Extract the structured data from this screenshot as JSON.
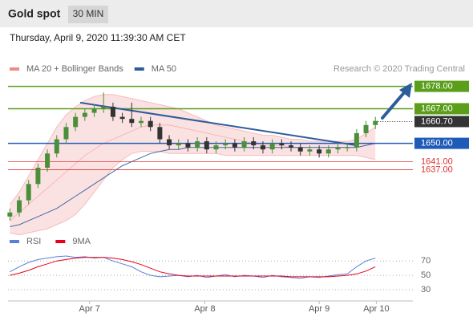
{
  "header": {
    "title": "Gold spot",
    "interval": "30 MIN",
    "timestamp": "Thursday, April 9, 2020 11:39:30 AM CET",
    "source": "Research © 2020 Trading Central"
  },
  "chart_data": [
    {
      "type": "candlestick",
      "xlim": [
        -0.2,
        43
      ],
      "ylim": [
        1610,
        1681
      ],
      "up_color": "#4a8f3a",
      "down_color": "#333333",
      "open": [
        1614,
        1616,
        1622,
        1630,
        1638,
        1645,
        1652,
        1658,
        1663,
        1665,
        1667,
        1668,
        1663,
        1662,
        1660,
        1661,
        1658,
        1652,
        1649,
        1650,
        1648,
        1651,
        1647,
        1649,
        1650,
        1648,
        1651,
        1649,
        1647,
        1650,
        1649,
        1648,
        1646,
        1647,
        1645,
        1647,
        1648,
        1648,
        1655,
        1659
      ],
      "high": [
        1618,
        1624,
        1632,
        1640,
        1647,
        1654,
        1660,
        1665,
        1667,
        1669,
        1675,
        1670,
        1665,
        1670,
        1663,
        1663,
        1660,
        1654,
        1652,
        1652,
        1653,
        1653,
        1651,
        1652,
        1652,
        1653,
        1653,
        1651,
        1652,
        1652,
        1651,
        1650,
        1649,
        1649,
        1649,
        1650,
        1650,
        1657,
        1661,
        1663
      ],
      "low": [
        1612,
        1614,
        1620,
        1628,
        1636,
        1643,
        1650,
        1656,
        1661,
        1663,
        1665,
        1661,
        1660,
        1658,
        1658,
        1656,
        1650,
        1647,
        1647,
        1646,
        1646,
        1645,
        1645,
        1647,
        1646,
        1646,
        1647,
        1645,
        1645,
        1647,
        1646,
        1644,
        1644,
        1643,
        1643,
        1645,
        1646,
        1646,
        1653,
        1657
      ],
      "close": [
        1616,
        1622,
        1630,
        1638,
        1645,
        1652,
        1658,
        1663,
        1665,
        1667,
        1668,
        1663,
        1662,
        1660,
        1661,
        1658,
        1652,
        1649,
        1650,
        1648,
        1651,
        1647,
        1649,
        1650,
        1648,
        1651,
        1649,
        1647,
        1650,
        1649,
        1648,
        1646,
        1647,
        1645,
        1647,
        1648,
        1648,
        1655,
        1659,
        1661
      ],
      "series": [
        {
          "name": "MA 20 + Bollinger Bands",
          "color": "#f08a8a",
          "values": [
            1612,
            1616,
            1620,
            1624,
            1628,
            1632,
            1636,
            1640,
            1644,
            1647,
            1650,
            1652,
            1654,
            1656,
            1658,
            1659,
            1659,
            1659,
            1658,
            1657,
            1656,
            1655,
            1654,
            1653,
            1652,
            1651,
            1650,
            1649,
            1649,
            1649,
            1648,
            1648,
            1648,
            1648,
            1648,
            1648,
            1648,
            1648,
            1649,
            1650
          ],
          "upper": [
            1620,
            1626,
            1634,
            1642,
            1650,
            1658,
            1664,
            1668,
            1671,
            1673,
            1674,
            1674,
            1673,
            1672,
            1671,
            1670,
            1669,
            1668,
            1667,
            1665,
            1663,
            1661,
            1659,
            1658,
            1657,
            1656,
            1655,
            1654,
            1654,
            1653,
            1652,
            1652,
            1651,
            1651,
            1651,
            1651,
            1651,
            1652,
            1655,
            1658
          ],
          "lower": [
            1606,
            1605,
            1606,
            1607,
            1608,
            1610,
            1612,
            1615,
            1620,
            1626,
            1632,
            1638,
            1642,
            1645,
            1646,
            1646,
            1646,
            1645,
            1645,
            1645,
            1645,
            1645,
            1645,
            1644,
            1644,
            1644,
            1644,
            1644,
            1644,
            1644,
            1644,
            1644,
            1644,
            1644,
            1644,
            1644,
            1644,
            1644,
            1643,
            1642
          ]
        },
        {
          "name": "MA 50",
          "color": "#2e5c9a",
          "values": [
            1609,
            1610,
            1612,
            1614,
            1616,
            1618,
            1621,
            1624,
            1627,
            1630,
            1633,
            1636,
            1639,
            1641,
            1643,
            1645,
            1646,
            1647,
            1647,
            1648,
            1648,
            1648,
            1648,
            1648,
            1648,
            1648,
            1648,
            1648,
            1648,
            1648,
            1648,
            1648,
            1648,
            1648,
            1648,
            1648,
            1648,
            1648,
            1649,
            1650
          ]
        }
      ],
      "trendline": {
        "x": [
          7.5,
          37
        ],
        "y": [
          1670,
          1649
        ],
        "color": "#2e5c9a"
      },
      "levels": [
        {
          "value": 1678,
          "label": "1678.00",
          "color": "#5a9e1a",
          "style": "box"
        },
        {
          "value": 1667,
          "label": "1667.00",
          "color": "#5a9e1a",
          "style": "box"
        },
        {
          "value": 1660.7,
          "label": "1660.70",
          "color": "#333333",
          "style": "current"
        },
        {
          "value": 1650,
          "label": "1650.00",
          "color": "#1e5bb8",
          "style": "box"
        },
        {
          "value": 1641,
          "label": "1641.00",
          "color": "#e03030",
          "style": "text"
        },
        {
          "value": 1637,
          "label": "1637.00",
          "color": "#e03030",
          "style": "text"
        }
      ]
    },
    {
      "type": "line",
      "xlim": [
        -0.2,
        43
      ],
      "ylim": [
        20,
        87
      ],
      "yticks": [
        30,
        50,
        70
      ],
      "grid": true,
      "series": [
        {
          "name": "RSI",
          "color": "#5b7fd6",
          "values": [
            55,
            62,
            68,
            72,
            74,
            76,
            77,
            75,
            76,
            74,
            75,
            70,
            66,
            62,
            55,
            50,
            48,
            49,
            50,
            48,
            50,
            47,
            49,
            51,
            48,
            50,
            49,
            47,
            50,
            48,
            47,
            46,
            48,
            47,
            49,
            51,
            52,
            62,
            70,
            74
          ]
        },
        {
          "name": "9MA",
          "color": "#e8001c",
          "values": [
            50,
            53,
            57,
            62,
            66,
            70,
            72,
            74,
            75,
            75,
            75,
            74,
            72,
            69,
            65,
            60,
            55,
            52,
            50,
            49,
            49,
            49,
            49,
            49,
            49,
            49,
            49,
            49,
            49,
            49,
            48,
            48,
            48,
            48,
            48,
            49,
            50,
            52,
            56,
            62
          ]
        }
      ],
      "xticks": [
        {
          "value": 8.5,
          "label": "Apr 7"
        },
        {
          "value": 20.8,
          "label": "Apr 8"
        },
        {
          "value": 33.0,
          "label": "Apr 9"
        },
        {
          "value": 39.1,
          "label": "Apr 10"
        }
      ]
    }
  ]
}
